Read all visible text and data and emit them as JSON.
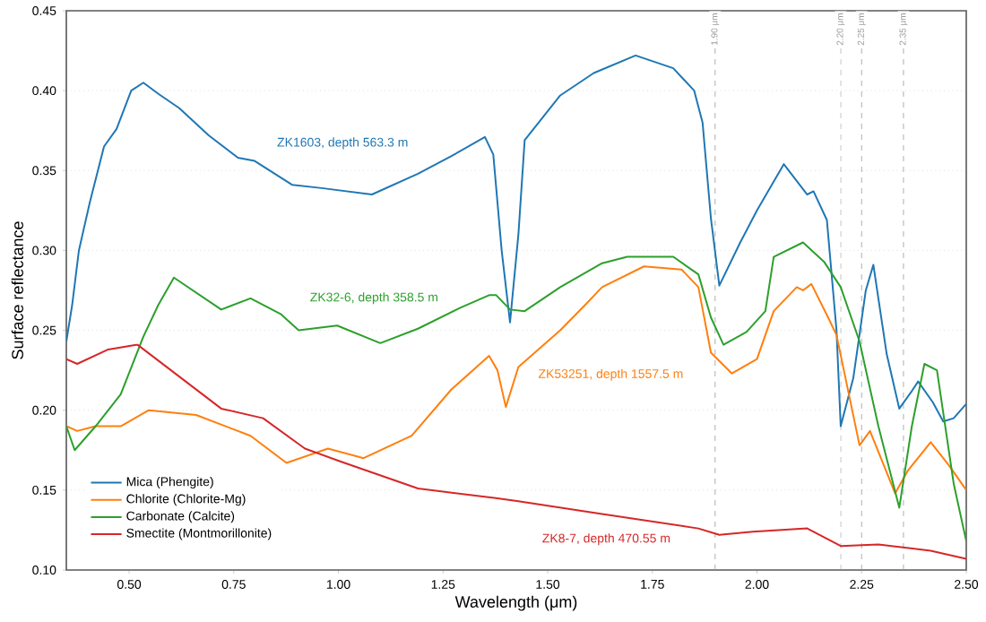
{
  "chart_data": {
    "type": "line",
    "xlabel": "Wavelength (μm)",
    "ylabel": "Surface reflectance",
    "xlim": [
      0.35,
      2.5
    ],
    "ylim": [
      0.1,
      0.45
    ],
    "xticks": [
      {
        "value": 0.5,
        "label": "0.50"
      },
      {
        "value": 0.75,
        "label": "0.75"
      },
      {
        "value": 1.0,
        "label": "1.00"
      },
      {
        "value": 1.25,
        "label": "1.25"
      },
      {
        "value": 1.5,
        "label": "1.50"
      },
      {
        "value": 1.75,
        "label": "1.75"
      },
      {
        "value": 2.0,
        "label": "2.00"
      },
      {
        "value": 2.25,
        "label": "2.25"
      },
      {
        "value": 2.5,
        "label": "2.50"
      }
    ],
    "yticks": [
      {
        "value": 0.1,
        "label": "0.10"
      },
      {
        "value": 0.15,
        "label": "0.15"
      },
      {
        "value": 0.2,
        "label": "0.20"
      },
      {
        "value": 0.25,
        "label": "0.25"
      },
      {
        "value": 0.3,
        "label": "0.30"
      },
      {
        "value": 0.35,
        "label": "0.35"
      },
      {
        "value": 0.4,
        "label": "0.40"
      },
      {
        "value": 0.45,
        "label": "0.45"
      }
    ],
    "grid": "y",
    "legend": "bottom left",
    "marker": "none",
    "line_style": "solid",
    "series": [
      {
        "name": "Mica (Phengite)",
        "color": "#1f77b4",
        "x": [
          0.35,
          0.364,
          0.38,
          0.406,
          0.44,
          0.47,
          0.505,
          0.534,
          0.57,
          0.62,
          0.69,
          0.76,
          0.8,
          0.89,
          0.96,
          1.08,
          1.19,
          1.27,
          1.35,
          1.37,
          1.39,
          1.41,
          1.43,
          1.445,
          1.53,
          1.61,
          1.71,
          1.8,
          1.85,
          1.87,
          1.89,
          1.91,
          1.96,
          2.0,
          2.064,
          2.12,
          2.135,
          2.167,
          2.19,
          2.2,
          2.23,
          2.26,
          2.278,
          2.31,
          2.34,
          2.37,
          2.385,
          2.42,
          2.445,
          2.47,
          2.5
        ],
        "values": [
          0.243,
          0.266,
          0.3,
          0.33,
          0.365,
          0.376,
          0.4,
          0.405,
          0.398,
          0.389,
          0.372,
          0.358,
          0.356,
          0.341,
          0.339,
          0.335,
          0.348,
          0.359,
          0.371,
          0.36,
          0.3,
          0.255,
          0.31,
          0.369,
          0.397,
          0.411,
          0.422,
          0.414,
          0.4,
          0.38,
          0.32,
          0.278,
          0.305,
          0.325,
          0.354,
          0.335,
          0.337,
          0.319,
          0.25,
          0.19,
          0.22,
          0.275,
          0.291,
          0.235,
          0.201,
          0.212,
          0.218,
          0.205,
          0.193,
          0.195,
          0.204
        ]
      },
      {
        "name": "Chlorite (Chlorite-Mg)",
        "color": "#ff7f0e",
        "x": [
          0.35,
          0.376,
          0.42,
          0.48,
          0.547,
          0.66,
          0.79,
          0.876,
          0.975,
          1.06,
          1.175,
          1.27,
          1.36,
          1.38,
          1.4,
          1.43,
          1.53,
          1.59,
          1.63,
          1.73,
          1.82,
          1.86,
          1.89,
          1.94,
          2.0,
          2.04,
          2.095,
          2.11,
          2.13,
          2.17,
          2.19,
          2.245,
          2.27,
          2.33,
          2.36,
          2.415,
          2.46,
          2.5
        ],
        "values": [
          0.19,
          0.187,
          0.19,
          0.19,
          0.2,
          0.197,
          0.184,
          0.167,
          0.176,
          0.17,
          0.184,
          0.213,
          0.234,
          0.225,
          0.202,
          0.227,
          0.25,
          0.266,
          0.277,
          0.29,
          0.288,
          0.277,
          0.236,
          0.223,
          0.232,
          0.262,
          0.277,
          0.275,
          0.279,
          0.258,
          0.247,
          0.178,
          0.187,
          0.148,
          0.162,
          0.18,
          0.165,
          0.15
        ]
      },
      {
        "name": "Carbonate (Calcite)",
        "color": "#2ca02c",
        "x": [
          0.35,
          0.37,
          0.42,
          0.48,
          0.534,
          0.57,
          0.607,
          0.72,
          0.79,
          0.863,
          0.905,
          0.997,
          1.1,
          1.19,
          1.29,
          1.36,
          1.377,
          1.41,
          1.445,
          1.53,
          1.63,
          1.69,
          1.8,
          1.86,
          1.89,
          1.92,
          1.975,
          2.02,
          2.04,
          2.11,
          2.16,
          2.2,
          2.245,
          2.29,
          2.34,
          2.37,
          2.4,
          2.43,
          2.47,
          2.5
        ],
        "values": [
          0.19,
          0.175,
          0.19,
          0.21,
          0.246,
          0.266,
          0.283,
          0.263,
          0.27,
          0.26,
          0.25,
          0.253,
          0.242,
          0.251,
          0.264,
          0.272,
          0.272,
          0.263,
          0.262,
          0.277,
          0.292,
          0.296,
          0.296,
          0.285,
          0.258,
          0.241,
          0.249,
          0.262,
          0.296,
          0.305,
          0.293,
          0.277,
          0.243,
          0.19,
          0.139,
          0.19,
          0.229,
          0.225,
          0.154,
          0.118
        ]
      },
      {
        "name": "Smectite (Montmorillonite)",
        "color": "#d62728",
        "x": [
          0.35,
          0.376,
          0.45,
          0.52,
          0.62,
          0.72,
          0.82,
          0.92,
          1.004,
          1.19,
          1.376,
          1.43,
          1.63,
          1.86,
          1.91,
          1.99,
          2.12,
          2.2,
          2.29,
          2.415,
          2.5
        ],
        "values": [
          0.232,
          0.229,
          0.238,
          0.241,
          0.221,
          0.201,
          0.195,
          0.176,
          0.168,
          0.151,
          0.145,
          0.143,
          0.135,
          0.126,
          0.122,
          0.124,
          0.126,
          0.115,
          0.116,
          0.112,
          0.107
        ]
      }
    ],
    "annotations": [
      "ZK1603, depth 563.3 m",
      "ZK53251, depth 1557.5 m",
      "ZK32-6, depth 358.5 m",
      "ZK8-7, depth 470.55 m"
    ],
    "ref_lines": [
      {
        "axis": "x",
        "value": 1.9,
        "label": "1.90 μm",
        "color": "#999999",
        "line_style": "dashed"
      },
      {
        "axis": "x",
        "value": 2.2,
        "label": "2.20 μm",
        "color": "#999999",
        "line_style": "dashed"
      },
      {
        "axis": "x",
        "value": 2.25,
        "label": "2.25 μm",
        "color": "#999999",
        "line_style": "dashed"
      },
      {
        "axis": "x",
        "value": 2.35,
        "label": "2.35 μm",
        "color": "#999999",
        "line_style": "dashed"
      }
    ]
  }
}
